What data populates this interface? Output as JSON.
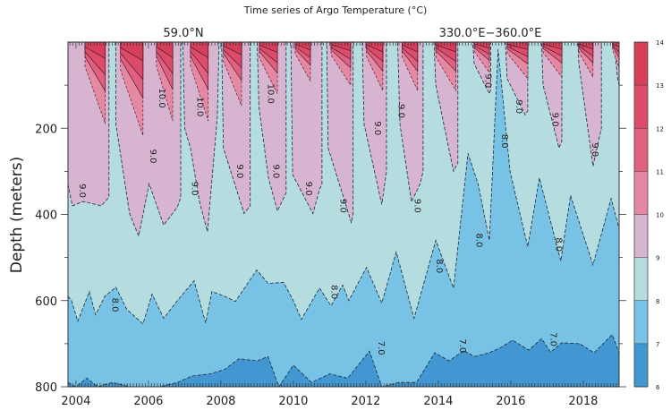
{
  "chart_data": {
    "type": "heatmap",
    "subtype": "filled-contour depth-time section",
    "title": "Time series of Argo Temperature (°C)",
    "subtitle_left": "59.0°N",
    "subtitle_right": "330.0°E−360.0°E",
    "xlabel": "",
    "ylabel": "Depth (meters)",
    "xlim": [
      2003.78,
      2018.99
    ],
    "ylim": [
      800,
      0
    ],
    "x_ticks": [
      2004,
      2006,
      2008,
      2010,
      2012,
      2014,
      2016,
      2018
    ],
    "x_tick_labels": [
      "2004",
      "2006",
      "2008",
      "2010",
      "2012",
      "2014",
      "2016",
      "2018"
    ],
    "y_ticks": [
      200,
      400,
      600,
      800
    ],
    "y_tick_labels": [
      "200",
      "400",
      "600",
      "800"
    ],
    "colorbar": {
      "levels": [
        6,
        7,
        8,
        9,
        10,
        11,
        12,
        13,
        14
      ],
      "labels": [
        "6",
        "7",
        "8",
        "9",
        "10",
        "11",
        "12",
        "13",
        "14"
      ],
      "colors": [
        "#4296d1",
        "#78c3e5",
        "#b5dde0",
        "#d7b4cf",
        "#e589a3",
        "#e0607f",
        "#dc4b6a",
        "#d63f5a"
      ]
    },
    "isotherm_9": [
      [
        2003.78,
        330
      ],
      [
        2003.9,
        380
      ],
      [
        2004.2,
        370
      ],
      [
        2004.7,
        380
      ],
      [
        2004.91,
        360
      ],
      [
        2004.91,
        0
      ],
      [
        2005.1,
        0
      ],
      [
        2005.1,
        190
      ],
      [
        2005.48,
        398
      ],
      [
        2005.73,
        450
      ],
      [
        2006.02,
        329
      ],
      [
        2006.42,
        425
      ],
      [
        2006.8,
        383
      ],
      [
        2006.89,
        360
      ],
      [
        2006.89,
        0
      ],
      [
        2006.95,
        0
      ],
      [
        2007.0,
        200
      ],
      [
        2007.16,
        246
      ],
      [
        2007.41,
        371
      ],
      [
        2007.63,
        440
      ],
      [
        2007.9,
        175
      ],
      [
        2007.95,
        0
      ],
      [
        2008.02,
        0
      ],
      [
        2008.07,
        246
      ],
      [
        2008.64,
        398
      ],
      [
        2008.81,
        380
      ],
      [
        2008.81,
        0
      ],
      [
        2009.0,
        0
      ],
      [
        2009.05,
        150
      ],
      [
        2009.31,
        315
      ],
      [
        2009.56,
        392
      ],
      [
        2009.8,
        350
      ],
      [
        2009.8,
        0
      ],
      [
        2009.93,
        0
      ],
      [
        2009.98,
        308
      ],
      [
        2010.54,
        398
      ],
      [
        2010.72,
        342
      ],
      [
        2010.79,
        330
      ],
      [
        2010.79,
        0
      ],
      [
        2010.92,
        0
      ],
      [
        2010.96,
        246
      ],
      [
        2011.6,
        419
      ],
      [
        2011.65,
        400
      ],
      [
        2011.65,
        0
      ],
      [
        2011.9,
        0
      ],
      [
        2011.95,
        190
      ],
      [
        2012.44,
        377
      ],
      [
        2012.57,
        300
      ],
      [
        2012.57,
        0
      ],
      [
        2012.88,
        0
      ],
      [
        2012.94,
        190
      ],
      [
        2013.26,
        371
      ],
      [
        2013.5,
        329
      ],
      [
        2013.58,
        300
      ],
      [
        2013.58,
        0
      ],
      [
        2013.88,
        0
      ],
      [
        2013.93,
        100
      ],
      [
        2014.42,
        300
      ],
      [
        2014.54,
        280
      ],
      [
        2014.54,
        0
      ],
      [
        2014.95,
        0
      ],
      [
        2014.99,
        50
      ],
      [
        2015.41,
        120
      ],
      [
        2015.45,
        110
      ],
      [
        2015.45,
        0
      ],
      [
        2015.85,
        0
      ],
      [
        2015.9,
        85
      ],
      [
        2016.4,
        169
      ],
      [
        2016.47,
        160
      ],
      [
        2016.47,
        0
      ],
      [
        2016.85,
        0
      ],
      [
        2016.89,
        100
      ],
      [
        2017.33,
        246
      ],
      [
        2017.41,
        230
      ],
      [
        2017.41,
        0
      ],
      [
        2017.85,
        0
      ],
      [
        2017.88,
        50
      ],
      [
        2018.27,
        288
      ],
      [
        2018.5,
        200
      ],
      [
        2018.5,
        0
      ],
      [
        2018.82,
        0
      ],
      [
        2018.86,
        10
      ],
      [
        2018.95,
        85
      ],
      [
        2018.99,
        100
      ]
    ],
    "isotherm_8": [
      [
        2003.78,
        590
      ],
      [
        2003.88,
        600
      ],
      [
        2004.05,
        648
      ],
      [
        2004.37,
        579
      ],
      [
        2004.54,
        633
      ],
      [
        2004.8,
        590
      ],
      [
        2005.1,
        569
      ],
      [
        2005.4,
        620
      ],
      [
        2005.85,
        654
      ],
      [
        2006.1,
        585
      ],
      [
        2006.42,
        641
      ],
      [
        2006.8,
        600
      ],
      [
        2007.26,
        554
      ],
      [
        2007.58,
        652
      ],
      [
        2007.75,
        579
      ],
      [
        2008.1,
        590
      ],
      [
        2008.4,
        602
      ],
      [
        2008.99,
        529
      ],
      [
        2009.3,
        560
      ],
      [
        2009.73,
        558
      ],
      [
        2010.0,
        600
      ],
      [
        2010.22,
        644
      ],
      [
        2010.72,
        571
      ],
      [
        2011.04,
        612
      ],
      [
        2011.36,
        564
      ],
      [
        2011.53,
        600
      ],
      [
        2012.02,
        523
      ],
      [
        2012.44,
        606
      ],
      [
        2012.84,
        487
      ],
      [
        2013.33,
        641
      ],
      [
        2013.93,
        460
      ],
      [
        2014.42,
        571
      ],
      [
        2014.82,
        258
      ],
      [
        2015.1,
        330
      ],
      [
        2015.41,
        460
      ],
      [
        2015.65,
        17
      ],
      [
        2015.98,
        300
      ],
      [
        2016.47,
        475
      ],
      [
        2016.79,
        315
      ],
      [
        2017.38,
        508
      ],
      [
        2017.65,
        356
      ],
      [
        2018.27,
        517
      ],
      [
        2018.77,
        363
      ],
      [
        2018.99,
        433
      ]
    ],
    "isotherm_7": [
      [
        2003.78,
        790
      ],
      [
        2004.0,
        800
      ],
      [
        2004.3,
        780
      ],
      [
        2004.6,
        800
      ],
      [
        2005.0,
        790
      ],
      [
        2005.5,
        800
      ],
      [
        2006.3,
        800
      ],
      [
        2006.8,
        790
      ],
      [
        2007.2,
        775
      ],
      [
        2007.7,
        770
      ],
      [
        2008.1,
        760
      ],
      [
        2008.5,
        735
      ],
      [
        2009.0,
        740
      ],
      [
        2009.3,
        730
      ],
      [
        2009.6,
        800
      ],
      [
        2010.0,
        750
      ],
      [
        2010.5,
        790
      ],
      [
        2011.0,
        770
      ],
      [
        2011.5,
        780
      ],
      [
        2012.1,
        717
      ],
      [
        2012.44,
        800
      ],
      [
        2012.9,
        790
      ],
      [
        2013.4,
        790
      ],
      [
        2013.9,
        721
      ],
      [
        2014.3,
        740
      ],
      [
        2014.7,
        716
      ],
      [
        2015.0,
        730
      ],
      [
        2015.4,
        721
      ],
      [
        2015.7,
        710
      ],
      [
        2016.05,
        692
      ],
      [
        2016.5,
        715
      ],
      [
        2016.85,
        688
      ],
      [
        2017.1,
        720
      ],
      [
        2017.4,
        698
      ],
      [
        2017.9,
        700
      ],
      [
        2018.3,
        721
      ],
      [
        2018.8,
        679
      ],
      [
        2018.99,
        721
      ]
    ],
    "warm_cores": [
      {
        "start": 2004.25,
        "end": 2004.81,
        "depth_10": 190
      },
      {
        "start": 2005.23,
        "end": 2005.85,
        "depth_10": 217
      },
      {
        "start": 2006.22,
        "end": 2006.67,
        "depth_10": 183
      },
      {
        "start": 2007.16,
        "end": 2007.65,
        "depth_10": 183
      },
      {
        "start": 2008.07,
        "end": 2008.57,
        "depth_10": 148
      },
      {
        "start": 2009.06,
        "end": 2009.56,
        "depth_10": 120
      },
      {
        "start": 2010.05,
        "end": 2010.47,
        "depth_10": 90
      },
      {
        "start": 2011.04,
        "end": 2011.58,
        "depth_10": 100
      },
      {
        "start": 2012.02,
        "end": 2012.47,
        "depth_10": 113
      },
      {
        "start": 2013.0,
        "end": 2013.43,
        "depth_10": 113
      },
      {
        "start": 2013.93,
        "end": 2014.49,
        "depth_10": 113
      },
      {
        "start": 2014.99,
        "end": 2015.41,
        "depth_10": 71
      },
      {
        "start": 2015.9,
        "end": 2016.47,
        "depth_10": 85
      },
      {
        "start": 2016.89,
        "end": 2017.41,
        "depth_10": 81
      },
      {
        "start": 2017.88,
        "end": 2018.27,
        "depth_10": 81
      },
      {
        "start": 2018.81,
        "end": 2018.99,
        "depth_10": 60
      }
    ],
    "contour_labels": [
      {
        "text": "10.0",
        "x": 2006.3,
        "depth": 130
      },
      {
        "text": "10.0",
        "x": 2007.35,
        "depth": 150
      },
      {
        "text": "10.0",
        "x": 2009.3,
        "depth": 120
      },
      {
        "text": "9.0",
        "x": 2004.1,
        "depth": 345
      },
      {
        "text": "9.0",
        "x": 2006.05,
        "depth": 265
      },
      {
        "text": "9.0",
        "x": 2007.2,
        "depth": 340
      },
      {
        "text": "9.0",
        "x": 2008.45,
        "depth": 300
      },
      {
        "text": "9.0",
        "x": 2009.45,
        "depth": 300
      },
      {
        "text": "9.0",
        "x": 2010.35,
        "depth": 340
      },
      {
        "text": "9.0",
        "x": 2011.3,
        "depth": 380
      },
      {
        "text": "9.0",
        "x": 2012.25,
        "depth": 200
      },
      {
        "text": "9.0",
        "x": 2012.9,
        "depth": 160
      },
      {
        "text": "9.0",
        "x": 2013.35,
        "depth": 380
      },
      {
        "text": "9.0",
        "x": 2015.3,
        "depth": 90
      },
      {
        "text": "9.0",
        "x": 2016.15,
        "depth": 150
      },
      {
        "text": "9.0",
        "x": 2017.15,
        "depth": 180
      },
      {
        "text": "9.0",
        "x": 2018.25,
        "depth": 250
      },
      {
        "text": "8.0",
        "x": 2005.0,
        "depth": 610
      },
      {
        "text": "8.0",
        "x": 2011.05,
        "depth": 580
      },
      {
        "text": "8.0",
        "x": 2013.95,
        "depth": 520
      },
      {
        "text": "8.0",
        "x": 2015.05,
        "depth": 460
      },
      {
        "text": "8.0",
        "x": 2015.75,
        "depth": 230
      },
      {
        "text": "8.0",
        "x": 2017.25,
        "depth": 470
      },
      {
        "text": "7.0",
        "x": 2014.6,
        "depth": 705
      },
      {
        "text": "7.0",
        "x": 2017.1,
        "depth": 690
      },
      {
        "text": "7.0",
        "x": 2012.35,
        "depth": 710
      }
    ]
  }
}
